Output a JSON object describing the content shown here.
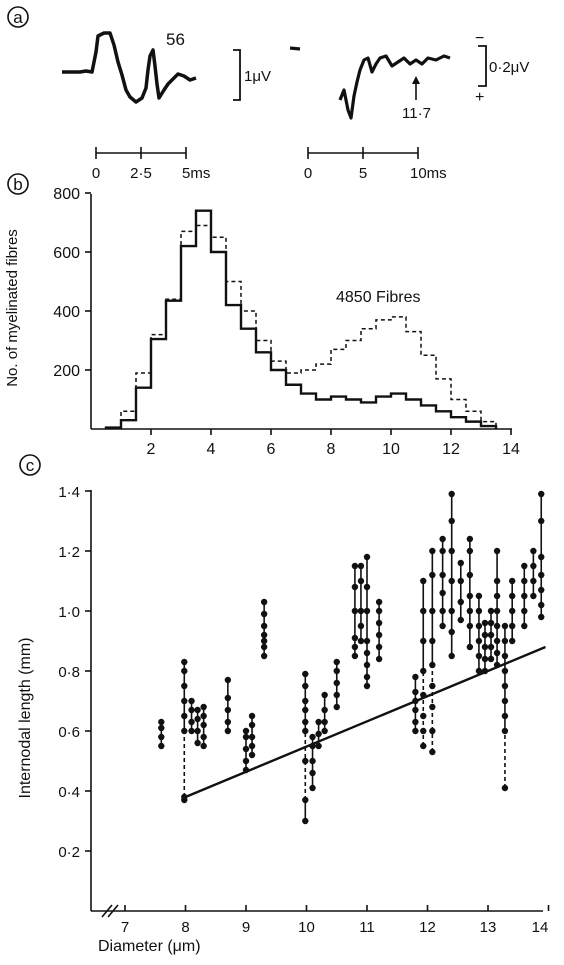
{
  "panel_a": {
    "label": "a",
    "trace1": {
      "annotation": "56",
      "scale_label": "1μV",
      "axis_ticks": [
        "0",
        "2·5",
        "5ms"
      ]
    },
    "trace2": {
      "annotation": "11·7",
      "scale_label": "0·2μV",
      "polarity_top": "−",
      "polarity_bottom": "+",
      "axis_ticks": [
        "0",
        "5",
        "10ms"
      ]
    }
  },
  "panel_b": {
    "label": "b",
    "annotation": "4850 Fibres"
  },
  "panel_c": {
    "label": "c"
  },
  "chart_data": [
    {
      "type": "histogram",
      "panel": "b",
      "ylabel": "No. of myelinated fibres",
      "xlim": [
        0,
        14
      ],
      "ylim": [
        0,
        800
      ],
      "x_ticks": [
        "2",
        "4",
        "6",
        "8",
        "10",
        "12",
        "14"
      ],
      "y_ticks": [
        "200",
        "400",
        "600",
        "800"
      ],
      "bin_width": 0.5,
      "bin_starts": [
        0.5,
        1.0,
        1.5,
        2.0,
        2.5,
        3.0,
        3.5,
        4.0,
        4.5,
        5.0,
        5.5,
        6.0,
        6.5,
        7.0,
        7.5,
        8.0,
        8.5,
        9.0,
        9.5,
        10.0,
        10.5,
        11.0,
        11.5,
        12.0,
        12.5,
        13.0
      ],
      "series": [
        {
          "style": "solid",
          "values": [
            5,
            30,
            140,
            305,
            435,
            620,
            740,
            600,
            420,
            340,
            260,
            200,
            150,
            120,
            100,
            110,
            100,
            90,
            110,
            120,
            100,
            80,
            60,
            40,
            25,
            10
          ]
        },
        {
          "style": "dashed",
          "values": [
            5,
            60,
            190,
            320,
            440,
            670,
            690,
            650,
            500,
            400,
            300,
            230,
            190,
            200,
            220,
            270,
            300,
            340,
            370,
            380,
            330,
            250,
            170,
            100,
            60,
            25
          ]
        }
      ]
    },
    {
      "type": "scatter",
      "panel": "c",
      "xlabel": "Diameter (μm)",
      "ylabel": "Internodal length (mm)",
      "xlim": [
        6.5,
        14
      ],
      "ylim": [
        0,
        1.4
      ],
      "x_ticks": [
        "7",
        "8",
        "9",
        "10",
        "11",
        "12",
        "13",
        "14"
      ],
      "y_ticks": [
        "0·2",
        "0·4",
        "0·6",
        "0·8",
        "1·0",
        "1·2",
        "1·4"
      ],
      "regression_line": {
        "from": [
          8.0,
          0.38
        ],
        "to": [
          13.95,
          0.88
        ]
      },
      "fibres": [
        {
          "x": 7.6,
          "y": [
            0.55,
            0.58,
            0.61,
            0.63
          ],
          "dashed": false
        },
        {
          "x": 7.98,
          "y": [
            0.37,
            0.38,
            0.6,
            0.65,
            0.7,
            0.75,
            0.8,
            0.83
          ],
          "dashed": true,
          "dash_range": [
            0.38,
            0.6
          ]
        },
        {
          "x": 8.1,
          "y": [
            0.6,
            0.63,
            0.67,
            0.7
          ],
          "dashed": false
        },
        {
          "x": 8.2,
          "y": [
            0.56,
            0.6,
            0.64,
            0.67
          ],
          "dashed": false
        },
        {
          "x": 8.3,
          "y": [
            0.55,
            0.58,
            0.62,
            0.65,
            0.68
          ],
          "dashed": false
        },
        {
          "x": 8.7,
          "y": [
            0.6,
            0.63,
            0.67,
            0.71,
            0.77
          ],
          "dashed": false
        },
        {
          "x": 9.0,
          "y": [
            0.47,
            0.5,
            0.54,
            0.58,
            0.6
          ],
          "dashed": false
        },
        {
          "x": 9.1,
          "y": [
            0.52,
            0.55,
            0.58,
            0.62,
            0.65
          ],
          "dashed": false
        },
        {
          "x": 9.3,
          "y": [
            0.85,
            0.88,
            0.9,
            0.92,
            0.95,
            0.99,
            1.03
          ],
          "dashed": false
        },
        {
          "x": 9.98,
          "y": [
            0.3,
            0.37,
            0.5,
            0.6,
            0.63,
            0.67,
            0.7,
            0.75,
            0.79
          ],
          "dashed": true,
          "dash_range": [
            0.37,
            0.6
          ]
        },
        {
          "x": 10.1,
          "y": [
            0.41,
            0.46,
            0.5,
            0.55,
            0.58
          ],
          "dashed": false
        },
        {
          "x": 10.2,
          "y": [
            0.55,
            0.59,
            0.63
          ],
          "dashed": false
        },
        {
          "x": 10.3,
          "y": [
            0.6,
            0.63,
            0.67,
            0.72
          ],
          "dashed": false
        },
        {
          "x": 10.5,
          "y": [
            0.68,
            0.72,
            0.76,
            0.8,
            0.83
          ],
          "dashed": false
        },
        {
          "x": 10.8,
          "y": [
            0.85,
            0.88,
            0.91,
            1.0,
            1.08,
            1.15
          ],
          "dashed": false
        },
        {
          "x": 10.9,
          "y": [
            0.9,
            0.95,
            1.0,
            1.1,
            1.15
          ],
          "dashed": false
        },
        {
          "x": 11.0,
          "y": [
            0.75,
            0.78,
            0.82,
            0.86,
            0.9,
            1.0,
            1.08,
            1.18
          ],
          "dashed": false
        },
        {
          "x": 11.2,
          "y": [
            0.84,
            0.88,
            0.92,
            0.96,
            1.0,
            1.03
          ],
          "dashed": false
        },
        {
          "x": 11.8,
          "y": [
            0.6,
            0.63,
            0.67,
            0.7,
            0.73,
            0.78
          ],
          "dashed": false
        },
        {
          "x": 11.93,
          "y": [
            0.55,
            0.6,
            0.65,
            0.72,
            0.8,
            0.9,
            1.0,
            1.1
          ],
          "dashed": true,
          "dash_range": [
            0.55,
            0.8
          ]
        },
        {
          "x": 12.08,
          "y": [
            0.53,
            0.6,
            0.68,
            0.75,
            0.82,
            0.9,
            1.0,
            1.12,
            1.2
          ],
          "dashed": true,
          "dash_range": [
            0.53,
            0.82
          ]
        },
        {
          "x": 12.25,
          "y": [
            0.95,
            1.0,
            1.06,
            1.12,
            1.2,
            1.24
          ],
          "dashed": false
        },
        {
          "x": 12.4,
          "y": [
            0.85,
            0.93,
            1.0,
            1.1,
            1.2,
            1.3,
            1.39
          ],
          "dashed": false
        },
        {
          "x": 12.55,
          "y": [
            0.97,
            1.03,
            1.1,
            1.16
          ],
          "dashed": false
        },
        {
          "x": 12.7,
          "y": [
            0.88,
            0.95,
            1.0,
            1.05,
            1.12,
            1.2,
            1.24
          ],
          "dashed": false
        },
        {
          "x": 12.85,
          "y": [
            0.8,
            0.85,
            0.9,
            0.95,
            1.0,
            1.05
          ],
          "dashed": false
        },
        {
          "x": 12.95,
          "y": [
            0.8,
            0.84,
            0.88,
            0.92,
            0.96
          ],
          "dashed": false
        },
        {
          "x": 13.05,
          "y": [
            0.84,
            0.88,
            0.92,
            0.96,
            1.0
          ],
          "dashed": false
        },
        {
          "x": 13.15,
          "y": [
            0.82,
            0.86,
            0.9,
            0.95,
            1.0,
            1.05,
            1.1,
            1.2
          ],
          "dashed": false
        },
        {
          "x": 13.28,
          "y": [
            0.41,
            0.6,
            0.65,
            0.7,
            0.75,
            0.8,
            0.85,
            0.9,
            0.95
          ],
          "dashed": true,
          "dash_range": [
            0.41,
            0.6
          ]
        },
        {
          "x": 13.4,
          "y": [
            0.9,
            0.95,
            1.0,
            1.05,
            1.1
          ],
          "dashed": false
        },
        {
          "x": 13.6,
          "y": [
            0.95,
            1.0,
            1.05,
            1.1,
            1.15
          ],
          "dashed": false
        },
        {
          "x": 13.75,
          "y": [
            1.05,
            1.1,
            1.15,
            1.2
          ],
          "dashed": false
        },
        {
          "x": 13.88,
          "y": [
            0.98,
            1.02,
            1.07,
            1.12,
            1.18,
            1.3,
            1.39
          ],
          "dashed": false
        }
      ]
    }
  ]
}
